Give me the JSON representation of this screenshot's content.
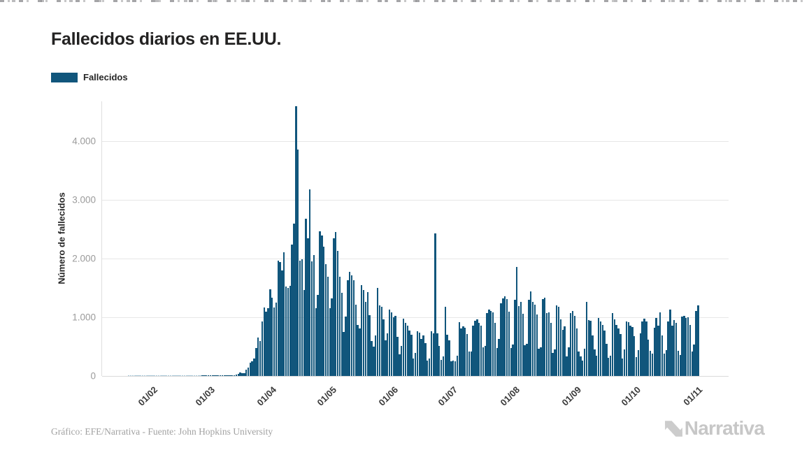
{
  "page": {
    "title": "Fallecidos diarios en EE.UU."
  },
  "legend": {
    "label": "Fallecidos",
    "swatch_color": "#11567c"
  },
  "footer": {
    "credit": "Gráfico: EFE/Narrativa - Fuente: John Hopkins University",
    "brand": "Narrativa"
  },
  "chart_data": {
    "type": "bar",
    "title": "Fallecidos diarios en EE.UU.",
    "series_name": "Fallecidos",
    "xlabel": "",
    "ylabel": "Número de fallecidos",
    "ylim": [
      0,
      4679
    ],
    "grid": "horizontal",
    "legend_position": "top-left",
    "bar_color": "#11567c",
    "zero_bar_color": "#a9c8d9",
    "x_tick_rotation": -45,
    "y_ticks": [
      {
        "value": 0,
        "label": "0"
      },
      {
        "value": 1000,
        "label": "1.000"
      },
      {
        "value": 2000,
        "label": "2.000"
      },
      {
        "value": 3000,
        "label": "3.000"
      },
      {
        "value": 4000,
        "label": "4.000"
      }
    ],
    "x_ticks": [
      {
        "label": "01/02",
        "day_index": 9
      },
      {
        "label": "01/03",
        "day_index": 38
      },
      {
        "label": "01/04",
        "day_index": 69
      },
      {
        "label": "01/05",
        "day_index": 99
      },
      {
        "label": "01/06",
        "day_index": 130
      },
      {
        "label": "01/07",
        "day_index": 160
      },
      {
        "label": "01/08",
        "day_index": 191
      },
      {
        "label": "01/09",
        "day_index": 222
      },
      {
        "label": "01/10",
        "day_index": 252
      },
      {
        "label": "01/11",
        "day_index": 283
      }
    ],
    "values": [
      0,
      0,
      0,
      0,
      0,
      0,
      0,
      0,
      0,
      0,
      0,
      0,
      0,
      0,
      0,
      0,
      0,
      0,
      0,
      0,
      0,
      0,
      0,
      0,
      0,
      0,
      0,
      0,
      0,
      0,
      0,
      0,
      0,
      0,
      0,
      0,
      0,
      1,
      1,
      5,
      1,
      4,
      1,
      3,
      2,
      3,
      4,
      4,
      8,
      3,
      8,
      9,
      11,
      18,
      23,
      41,
      57,
      49,
      46,
      111,
      140,
      225,
      247,
      300,
      480,
      650,
      590,
      930,
      1170,
      1100,
      1150,
      1480,
      1330,
      1170,
      1255,
      1970,
      1940,
      1800,
      2110,
      1530,
      1500,
      1540,
      2240,
      2600,
      4591,
      3857,
      1960,
      1990,
      1465,
      2674,
      2350,
      3176,
      1955,
      2065,
      1157,
      1384,
      2470,
      2390,
      2200,
      1900,
      1690,
      1155,
      1325,
      2350,
      2450,
      2130,
      1687,
      1420,
      750,
      1010,
      1630,
      1772,
      1715,
      1635,
      1220,
      865,
      810,
      1550,
      1460,
      1263,
      1430,
      1035,
      592,
      505,
      693,
      1505,
      1200,
      1175,
      960,
      605,
      730,
      1134,
      1085,
      995,
      1030,
      670,
      373,
      510,
      980,
      906,
      862,
      780,
      706,
      302,
      390,
      765,
      740,
      637,
      690,
      560,
      267,
      297,
      767,
      722,
      2425,
      730,
      512,
      271,
      335,
      1180,
      700,
      613,
      252,
      264,
      254,
      351,
      920,
      811,
      843,
      817,
      717,
      420,
      417,
      858,
      943,
      963,
      908,
      853,
      490,
      516,
      1069,
      1127,
      1110,
      1082,
      910,
      481,
      636,
      1237,
      1320,
      1358,
      1304,
      1098,
      471,
      541,
      1297,
      1853,
      1190,
      1268,
      1058,
      521,
      542,
      1296,
      1446,
      1266,
      1215,
      1044,
      469,
      487,
      1306,
      1339,
      1074,
      1087,
      900,
      398,
      449,
      1205,
      1174,
      965,
      790,
      851,
      333,
      488,
      1070,
      1110,
      1030,
      810,
      415,
      333,
      267,
      459,
      1265,
      954,
      940,
      692,
      453,
      345,
      990,
      930,
      870,
      775,
      550,
      310,
      350,
      1070,
      960,
      875,
      815,
      715,
      300,
      450,
      930,
      915,
      856,
      838,
      682,
      323,
      445,
      724,
      930,
      972,
      934,
      622,
      434,
      377,
      817,
      989,
      861,
      1080,
      686,
      387,
      445,
      932,
      1135,
      856,
      950,
      904,
      430,
      360,
      1010,
      1030,
      990,
      1004,
      870,
      417,
      537,
      1110,
      1205
    ]
  }
}
